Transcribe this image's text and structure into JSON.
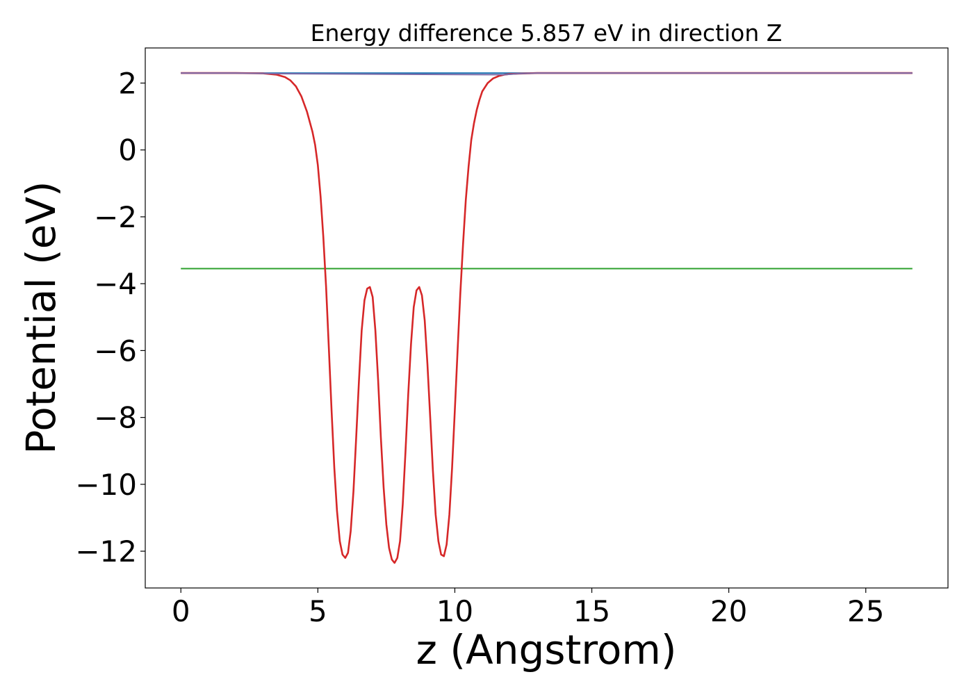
{
  "chart_data": {
    "type": "line",
    "title": "Energy difference 5.857 eV in direction Z",
    "xlabel": "z (Angstrom)",
    "ylabel": "Potential (eV)",
    "xlim": [
      -1.3,
      28.0
    ],
    "ylim": [
      -13.1,
      3.05
    ],
    "xticks": [
      0,
      5,
      10,
      15,
      20,
      25
    ],
    "xtick_labels": [
      "0",
      "5",
      "10",
      "15",
      "20",
      "25"
    ],
    "yticks": [
      2,
      0,
      -2,
      -4,
      -6,
      -8,
      -10,
      -12
    ],
    "ytick_labels": [
      "2",
      "0",
      "−2",
      "−4",
      "−6",
      "−8",
      "−10",
      "−12"
    ],
    "grid": false,
    "series": [
      {
        "color": "#1f77b4",
        "x": [
          0,
          26.7
        ],
        "y": [
          2.3,
          2.3
        ]
      },
      {
        "color": "#2ca02c",
        "x": [
          0,
          26.7
        ],
        "y": [
          -3.55,
          -3.55
        ]
      },
      {
        "color": "#d62728",
        "x": [
          0,
          1,
          2,
          3,
          3.5,
          3.8,
          4.0,
          4.2,
          4.4,
          4.6,
          4.8,
          4.9,
          5.0,
          5.1,
          5.2,
          5.3,
          5.4,
          5.5,
          5.6,
          5.7,
          5.8,
          5.9,
          6.0,
          6.1,
          6.2,
          6.3,
          6.4,
          6.5,
          6.6,
          6.7,
          6.8,
          6.9,
          7.0,
          7.1,
          7.2,
          7.3,
          7.4,
          7.5,
          7.6,
          7.7,
          7.8,
          7.9,
          8.0,
          8.1,
          8.2,
          8.3,
          8.4,
          8.5,
          8.6,
          8.7,
          8.8,
          8.9,
          9.0,
          9.1,
          9.2,
          9.3,
          9.4,
          9.5,
          9.6,
          9.7,
          9.8,
          9.9,
          10.0,
          10.1,
          10.2,
          10.3,
          10.4,
          10.5,
          10.6,
          10.7,
          10.8,
          10.9,
          11.0,
          11.2,
          11.4,
          11.6,
          11.8,
          12.0,
          12.3,
          12.6,
          13.0,
          14.0,
          16.0,
          20.0,
          24.0,
          26.7
        ],
        "y": [
          2.3,
          2.3,
          2.3,
          2.29,
          2.25,
          2.18,
          2.08,
          1.9,
          1.6,
          1.15,
          0.55,
          0.15,
          -0.45,
          -1.4,
          -2.6,
          -4.1,
          -5.9,
          -7.8,
          -9.5,
          -10.8,
          -11.7,
          -12.1,
          -12.2,
          -12.05,
          -11.4,
          -10.2,
          -8.6,
          -6.9,
          -5.4,
          -4.5,
          -4.15,
          -4.1,
          -4.4,
          -5.4,
          -6.9,
          -8.6,
          -10.1,
          -11.2,
          -11.9,
          -12.25,
          -12.35,
          -12.2,
          -11.7,
          -10.6,
          -9.0,
          -7.3,
          -5.8,
          -4.7,
          -4.2,
          -4.1,
          -4.35,
          -5.1,
          -6.4,
          -8.0,
          -9.6,
          -10.9,
          -11.7,
          -12.1,
          -12.15,
          -11.8,
          -10.9,
          -9.5,
          -7.8,
          -6.0,
          -4.3,
          -2.8,
          -1.5,
          -0.5,
          0.3,
          0.8,
          1.2,
          1.5,
          1.75,
          2.0,
          2.14,
          2.21,
          2.25,
          2.27,
          2.28,
          2.29,
          2.3,
          2.3,
          2.3,
          2.3,
          2.3,
          2.3
        ]
      },
      {
        "color": "#7b6aa8",
        "x": [
          0,
          2,
          3,
          3.5,
          11.8,
          12.3,
          13,
          16,
          20,
          26.7
        ],
        "y": [
          2.3,
          2.3,
          2.29,
          2.28,
          2.25,
          2.28,
          2.3,
          2.3,
          2.3,
          2.3
        ]
      }
    ]
  }
}
